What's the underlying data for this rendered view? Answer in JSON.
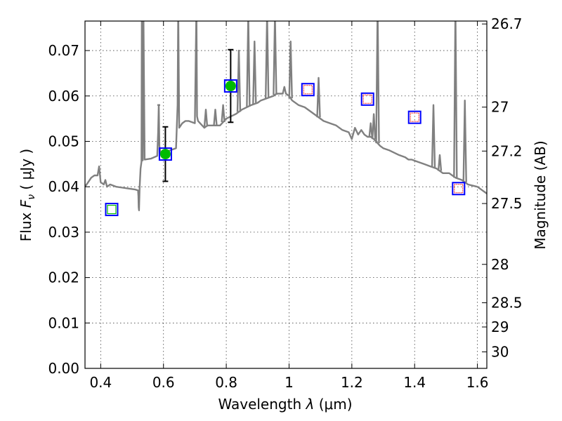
{
  "chart_data": {
    "type": "scatter",
    "title": "",
    "xlabel": "Wavelength",
    "xlabel_symbol": "λ",
    "xlabel_unit": "(μm)",
    "ylabel": "Flux",
    "ylabel_symbol": "F",
    "ylabel_subscript": "ν",
    "ylabel_unit": "( μJy )",
    "y2label": "Magnitude (AB)",
    "xlim": [
      0.35,
      1.63
    ],
    "ylim": [
      0.0,
      0.0765
    ],
    "grid": true,
    "x_ticks": [
      0.4,
      0.6,
      0.8,
      1.0,
      1.2,
      1.4,
      1.6
    ],
    "x_tick_labels": [
      "0.4",
      "0.6",
      "0.8",
      "1",
      "1.2",
      "1.4",
      "1.6"
    ],
    "y_ticks": [
      0.0,
      0.01,
      0.02,
      0.03,
      0.04,
      0.05,
      0.06,
      0.07
    ],
    "y_tick_labels": [
      "0.00",
      "0.01",
      "0.02",
      "0.03",
      "0.04",
      "0.05",
      "0.06",
      "0.07"
    ],
    "mag_ticks": [
      26.7,
      27,
      27.2,
      27.5,
      28,
      28.5,
      29,
      30
    ],
    "mag_tick_labels": [
      "26.7",
      "27",
      "27.2",
      "27.5",
      "28",
      "28.5",
      "29",
      "30"
    ],
    "model_spectrum": {
      "color": "#808080",
      "x": [
        0.35,
        0.36,
        0.37,
        0.38,
        0.39,
        0.395,
        0.4,
        0.41,
        0.415,
        0.42,
        0.43,
        0.45,
        0.47,
        0.49,
        0.51,
        0.519,
        0.52,
        0.521,
        0.522,
        0.524,
        0.527,
        0.53,
        0.531,
        0.532,
        0.534,
        0.536,
        0.54,
        0.56,
        0.58,
        0.583,
        0.585,
        0.587,
        0.59,
        0.6,
        0.62,
        0.64,
        0.645,
        0.647,
        0.65,
        0.66,
        0.67,
        0.68,
        0.7,
        0.705,
        0.707,
        0.71,
        0.73,
        0.74,
        0.75,
        0.78,
        0.8,
        0.83,
        0.85,
        0.88,
        0.9,
        0.91,
        0.93,
        0.95,
        0.96,
        0.97,
        0.98,
        0.985,
        0.99,
        1.0,
        1.01,
        1.03,
        1.05,
        1.07,
        1.09,
        1.11,
        1.13,
        1.15,
        1.17,
        1.19,
        1.2,
        1.21,
        1.22,
        1.23,
        1.24,
        1.25,
        1.26,
        1.27,
        1.29,
        1.3,
        1.32,
        1.35,
        1.37,
        1.38,
        1.39,
        1.41,
        1.43,
        1.45,
        1.47,
        1.49,
        1.51,
        1.52,
        1.53,
        1.55,
        1.57,
        1.6,
        1.63
      ],
      "y": [
        0.04,
        0.041,
        0.042,
        0.0425,
        0.0425,
        0.0445,
        0.041,
        0.0405,
        0.0415,
        0.04,
        0.0405,
        0.04,
        0.0398,
        0.0396,
        0.0394,
        0.0392,
        0.038,
        0.0355,
        0.0348,
        0.04,
        0.044,
        0.0455,
        0.08,
        0.046,
        0.0458,
        0.08,
        0.046,
        0.0462,
        0.0468,
        0.052,
        0.058,
        0.049,
        0.0475,
        0.0475,
        0.048,
        0.0485,
        0.058,
        0.08,
        0.053,
        0.054,
        0.0545,
        0.0545,
        0.054,
        0.08,
        0.0555,
        0.0545,
        0.053,
        0.0535,
        0.0535,
        0.0535,
        0.055,
        0.056,
        0.057,
        0.058,
        0.0585,
        0.059,
        0.0595,
        0.06,
        0.0605,
        0.0605,
        0.0605,
        0.062,
        0.0605,
        0.06,
        0.059,
        0.058,
        0.0575,
        0.0565,
        0.0555,
        0.0545,
        0.054,
        0.0535,
        0.0525,
        0.052,
        0.0505,
        0.053,
        0.0515,
        0.0525,
        0.0515,
        0.051,
        0.051,
        0.0505,
        0.049,
        0.0485,
        0.048,
        0.047,
        0.0465,
        0.046,
        0.046,
        0.0455,
        0.045,
        0.0445,
        0.044,
        0.043,
        0.043,
        0.0425,
        0.042,
        0.0415,
        0.0405,
        0.04,
        0.0385
      ],
      "emission_lines": [
        {
          "x": 0.5007,
          "peak": 0.0,
          "visible": false
        },
        {
          "x": 0.531,
          "peak": 0.08
        },
        {
          "x": 0.536,
          "peak": 0.08
        },
        {
          "x": 0.585,
          "peak": 0.058
        },
        {
          "x": 0.647,
          "peak": 0.08
        },
        {
          "x": 0.705,
          "peak": 0.08
        },
        {
          "x": 0.735,
          "peak": 0.057
        },
        {
          "x": 0.765,
          "peak": 0.057
        },
        {
          "x": 0.79,
          "peak": 0.058
        },
        {
          "x": 0.84,
          "peak": 0.07
        },
        {
          "x": 0.87,
          "peak": 0.078
        },
        {
          "x": 0.89,
          "peak": 0.072
        },
        {
          "x": 0.93,
          "peak": 0.078
        },
        {
          "x": 0.955,
          "peak": 0.078
        },
        {
          "x": 1.005,
          "peak": 0.072
        },
        {
          "x": 1.094,
          "peak": 0.064
        },
        {
          "x": 1.282,
          "peak": 0.08
        },
        {
          "x": 1.26,
          "peak": 0.054
        },
        {
          "x": 1.27,
          "peak": 0.056
        },
        {
          "x": 1.46,
          "peak": 0.058
        },
        {
          "x": 1.53,
          "peak": 0.08
        },
        {
          "x": 1.56,
          "peak": 0.059
        },
        {
          "x": 1.48,
          "peak": 0.047
        }
      ]
    },
    "model_photometry": {
      "marker": "square",
      "color": "#0000ff",
      "x": [
        0.435,
        0.606,
        0.814,
        1.06,
        1.25,
        1.4,
        1.54
      ],
      "y": [
        0.035,
        0.0472,
        0.0622,
        0.0614,
        0.0593,
        0.0553,
        0.0396
      ]
    },
    "observed_detections": {
      "marker": "circle",
      "color": "#00bb00",
      "x": [
        0.606,
        0.814
      ],
      "y": [
        0.0472,
        0.0622
      ],
      "yerr": [
        [
          0.006,
          0.006
        ],
        [
          0.008,
          0.008
        ]
      ]
    },
    "upper_limit_markers": {
      "marker": "open-square",
      "color": "#ff0000",
      "x": [
        1.06,
        1.25,
        1.4,
        1.54
      ],
      "y": [
        0.0614,
        0.0593,
        0.0553,
        0.0396
      ]
    },
    "nondetection_marker": {
      "marker": "open-square",
      "color": "#00bb00",
      "x": [
        0.435
      ],
      "y": [
        0.035
      ]
    }
  }
}
